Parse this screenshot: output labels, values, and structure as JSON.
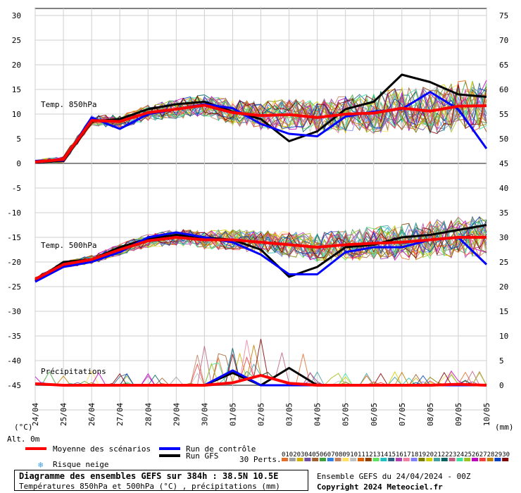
{
  "chart_data": {
    "type": "line",
    "x_dates": [
      "24/04",
      "25/04",
      "26/04",
      "27/04",
      "28/04",
      "29/04",
      "30/04",
      "01/05",
      "02/05",
      "03/05",
      "04/05",
      "05/05",
      "06/05",
      "07/05",
      "08/05",
      "09/05",
      "10/05"
    ],
    "left_axis_unit": "(°C)",
    "right_axis_unit": "(mm)",
    "alt_label": "Alt. 0m",
    "left_ticks": [
      30,
      25,
      20,
      15,
      10,
      5,
      0,
      -5,
      -10,
      -15,
      -20,
      -25,
      -30,
      -35,
      -40,
      -45
    ],
    "right_ticks": [
      75,
      70,
      65,
      60,
      55,
      50,
      45,
      40,
      35,
      30,
      25,
      20,
      15,
      10,
      5,
      0
    ],
    "panels": {
      "t850": "Temp. 850hPa",
      "t500": "Temp. 500hPa",
      "precip": "Précipitations"
    },
    "series": [
      {
        "name": "Moyenne des scénarios",
        "color": "#ff0000",
        "t850": [
          0.3,
          0.8,
          8.7,
          8.5,
          10.3,
          11.0,
          11.8,
          10.3,
          9.7,
          9.9,
          9.3,
          10.0,
          10.2,
          11.2,
          10.6,
          11.6,
          11.7
        ],
        "t500": [
          -23.5,
          -20.5,
          -19.5,
          -17.5,
          -15.7,
          -15.0,
          -15.5,
          -15.5,
          -16.0,
          -16.5,
          -17.0,
          -16.5,
          -16.2,
          -16.0,
          -15.5,
          -15.0,
          -15.0
        ],
        "precip": [
          0.3,
          0,
          0,
          0,
          0,
          0,
          0,
          0.5,
          2.0,
          0.4,
          0,
          0,
          0,
          0,
          0,
          0.2,
          0
        ]
      },
      {
        "name": "Run de contrôle",
        "color": "#0000ff",
        "t850": [
          0.5,
          0.6,
          9.3,
          7.0,
          10.0,
          11.0,
          12.0,
          11.2,
          8.0,
          6.0,
          5.5,
          9.5,
          10.5,
          11.0,
          14.5,
          11.0,
          3.0
        ],
        "t500": [
          -24.0,
          -21.0,
          -20.0,
          -18.0,
          -15.0,
          -14.0,
          -15.0,
          -16.0,
          -18.5,
          -22.5,
          -22.5,
          -18.0,
          -17.0,
          -17.0,
          -15.5,
          -15.0,
          -20.5
        ],
        "precip": [
          0.3,
          0,
          0,
          0,
          0,
          0,
          0,
          3.0,
          0,
          0,
          0,
          0,
          0,
          0,
          0,
          0,
          0
        ]
      },
      {
        "name": "Run GFS",
        "color": "#000000",
        "t850": [
          0.2,
          0.5,
          8.5,
          9.0,
          11.0,
          12.0,
          12.5,
          10.5,
          9.0,
          4.5,
          6.5,
          11.0,
          12.5,
          18.0,
          16.5,
          14.0,
          13.5
        ],
        "t500": [
          -23.8,
          -20.0,
          -19.5,
          -17.0,
          -15.3,
          -14.5,
          -15.0,
          -15.5,
          -17.5,
          -23.0,
          -21.0,
          -17.0,
          -16.5,
          -15.0,
          -14.5,
          -13.5,
          -12.5
        ],
        "precip": [
          0.3,
          0,
          0,
          0,
          0,
          0,
          0,
          2.5,
          0,
          3.5,
          0,
          0,
          0,
          0,
          0,
          0,
          0
        ]
      }
    ],
    "perts_label": "30 Perts.",
    "pert_ids": [
      "01",
      "02",
      "03",
      "04",
      "05",
      "06",
      "07",
      "08",
      "09",
      "10",
      "11",
      "12",
      "13",
      "14",
      "15",
      "16",
      "17",
      "18",
      "19",
      "20",
      "21",
      "22",
      "23",
      "24",
      "25",
      "26",
      "27",
      "28",
      "29",
      "30"
    ],
    "pert_colors": [
      "#e07030",
      "#a0a0a0",
      "#d0b000",
      "#7050a0",
      "#a06030",
      "#40a040",
      "#3080e0",
      "#c08060",
      "#ffe060",
      "#c0c0c0",
      "#e06000",
      "#904000",
      "#60e060",
      "#20c0c0",
      "#306080",
      "#b040b0",
      "#f080a0",
      "#8080ff",
      "#808000",
      "#d0d000",
      "#40a0a0",
      "#006060",
      "#c06080",
      "#40e0a0",
      "#a0c020",
      "#c000c0",
      "#f04040",
      "#c08000",
      "#0040c0",
      "#800000"
    ],
    "legend": {
      "mean": "Moyenne des scénarios",
      "control": "Run de contrôle",
      "gfs": "Run GFS",
      "snow": "Risque neige"
    },
    "title": "Diagramme des ensembles GEFS sur 384h : 38.5N 10.5E",
    "subtitle": "Températures 850hPa et 500hPa (°C) , précipitations (mm)",
    "ensemble_run": "Ensemble GEFS du 24/04/2024 - 00Z",
    "copyright": "Copyright 2024 Meteociel.fr"
  }
}
